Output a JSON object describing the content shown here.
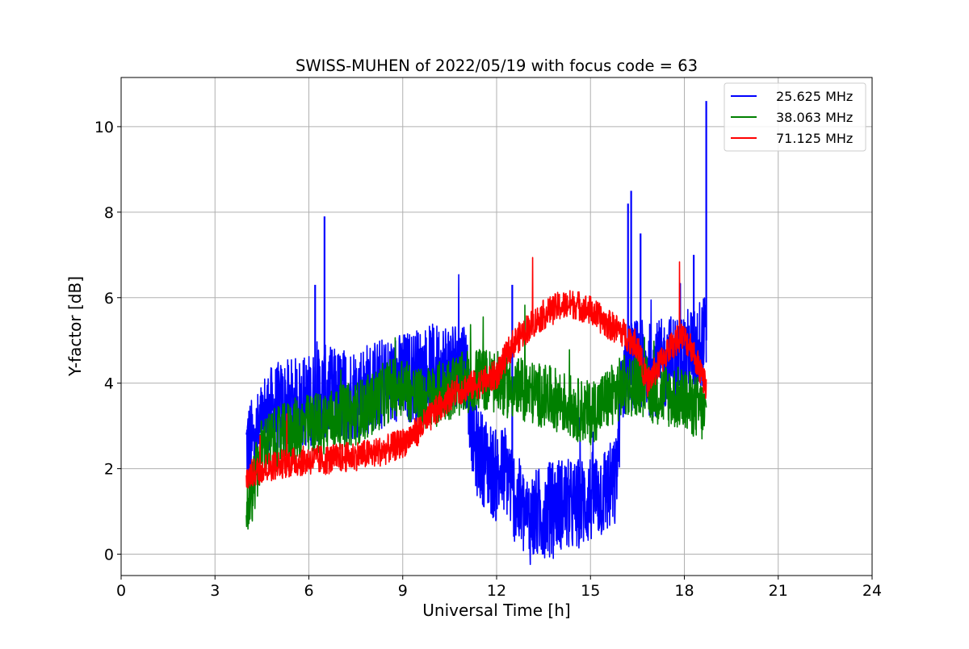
{
  "chart_data": {
    "type": "line",
    "title": "SWISS-MUHEN of 2022/05/19 with focus code = 63",
    "xlabel": "Universal Time [h]",
    "ylabel": "Y-factor [dB]",
    "xlim": [
      0,
      24
    ],
    "ylim": [
      -0.5,
      11.15
    ],
    "xticks": [
      0,
      3,
      6,
      9,
      12,
      15,
      18,
      21,
      24
    ],
    "yticks": [
      0,
      2,
      4,
      6,
      8,
      10
    ],
    "xtick_labels": [
      "0",
      "3",
      "6",
      "9",
      "12",
      "15",
      "18",
      "21",
      "24"
    ],
    "ytick_labels": [
      "0",
      "2",
      "4",
      "6",
      "8",
      "10"
    ],
    "grid": true,
    "legend_position": "top-right",
    "series": [
      {
        "name": "25.625 MHz",
        "color": "#0000ff",
        "x": [
          4.0,
          4.3,
          4.6,
          5.0,
          5.5,
          6.0,
          6.5,
          7.0,
          7.5,
          8.0,
          8.5,
          9.0,
          9.5,
          10.0,
          10.5,
          11.0,
          11.3,
          11.6,
          12.0,
          12.3,
          12.6,
          13.0,
          13.5,
          14.0,
          14.5,
          15.0,
          15.5,
          15.8,
          16.0,
          16.2,
          16.5,
          17.0,
          17.5,
          18.0,
          18.3,
          18.7
        ],
        "y": [
          2.5,
          2.6,
          3.2,
          3.4,
          3.5,
          3.6,
          3.8,
          3.7,
          3.8,
          3.9,
          4.0,
          4.1,
          4.2,
          4.3,
          4.4,
          4.5,
          2.5,
          2.2,
          1.8,
          2.0,
          1.3,
          0.8,
          1.0,
          1.2,
          1.1,
          1.3,
          1.5,
          1.6,
          4.0,
          4.5,
          4.4,
          4.3,
          4.5,
          4.6,
          4.8,
          5.0
        ],
        "spikes": [
          [
            6.2,
            6.3
          ],
          [
            6.5,
            7.9
          ],
          [
            12.5,
            6.3
          ],
          [
            16.2,
            8.2
          ],
          [
            16.3,
            8.5
          ],
          [
            16.6,
            7.5
          ],
          [
            18.3,
            7.0
          ],
          [
            18.7,
            10.6
          ]
        ]
      },
      {
        "name": "38.063 MHz",
        "color": "#008000",
        "x": [
          4.0,
          4.2,
          4.5,
          5.0,
          5.5,
          6.0,
          6.5,
          7.0,
          7.5,
          8.0,
          8.5,
          9.0,
          9.5,
          10.0,
          10.5,
          11.0,
          11.5,
          12.0,
          12.5,
          13.0,
          13.5,
          14.0,
          14.5,
          15.0,
          15.5,
          16.0,
          16.5,
          17.0,
          17.5,
          18.0,
          18.5,
          18.7
        ],
        "y": [
          1.0,
          1.5,
          2.5,
          2.7,
          2.9,
          3.0,
          3.1,
          3.2,
          3.3,
          3.5,
          3.8,
          4.0,
          3.6,
          3.7,
          3.9,
          4.0,
          4.1,
          4.0,
          3.9,
          3.8,
          3.7,
          3.6,
          3.4,
          3.3,
          3.6,
          3.9,
          4.0,
          3.8,
          3.7,
          3.6,
          3.4,
          3.2
        ]
      },
      {
        "name": "71.125 MHz",
        "color": "#ff0000",
        "x": [
          4.0,
          4.5,
          5.0,
          5.5,
          6.0,
          6.5,
          7.0,
          7.5,
          8.0,
          8.5,
          9.0,
          9.5,
          10.0,
          10.5,
          11.0,
          11.5,
          12.0,
          12.5,
          13.0,
          13.5,
          14.0,
          14.5,
          15.0,
          15.5,
          16.0,
          16.5,
          16.8,
          17.0,
          17.5,
          17.9,
          18.2,
          18.5,
          18.7
        ],
        "y": [
          1.8,
          2.0,
          2.1,
          2.15,
          2.2,
          2.2,
          2.25,
          2.3,
          2.35,
          2.45,
          2.6,
          2.9,
          3.3,
          3.7,
          3.9,
          4.0,
          4.2,
          4.9,
          5.3,
          5.6,
          5.8,
          5.85,
          5.7,
          5.4,
          5.2,
          4.9,
          4.0,
          4.2,
          4.8,
          5.1,
          4.9,
          4.3,
          3.9
        ]
      }
    ]
  }
}
